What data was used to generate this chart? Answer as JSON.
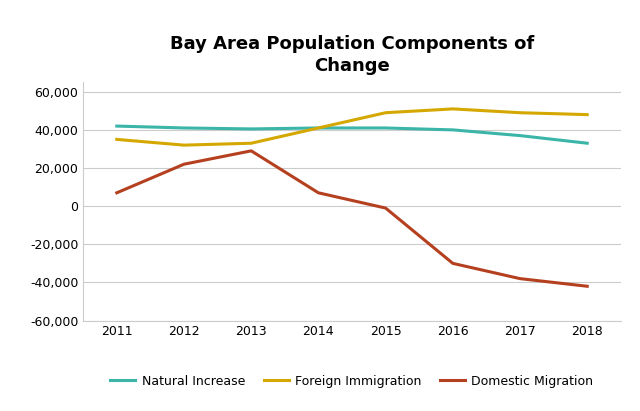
{
  "title": "Bay Area Population Components of\nChange",
  "years": [
    2011,
    2012,
    2013,
    2014,
    2015,
    2016,
    2017,
    2018
  ],
  "natural_increase": [
    42000,
    41000,
    40500,
    41000,
    41000,
    40000,
    37000,
    33000
  ],
  "foreign_immigration": [
    35000,
    32000,
    33000,
    41000,
    49000,
    51000,
    49000,
    48000
  ],
  "domestic_migration": [
    7000,
    22000,
    29000,
    7000,
    -1000,
    -30000,
    -38000,
    -42000
  ],
  "natural_increase_color": "#3ab5a8",
  "foreign_immigration_color": "#d4a800",
  "domestic_migration_color": "#b54020",
  "ylim": [
    -60000,
    65000
  ],
  "yticks": [
    -60000,
    -40000,
    -20000,
    0,
    20000,
    40000,
    60000
  ],
  "background_color": "#ffffff",
  "grid_color": "#cccccc",
  "legend_labels": [
    "Natural Increase",
    "Foreign Immigration",
    "Domestic Migration"
  ],
  "line_width": 2.2
}
